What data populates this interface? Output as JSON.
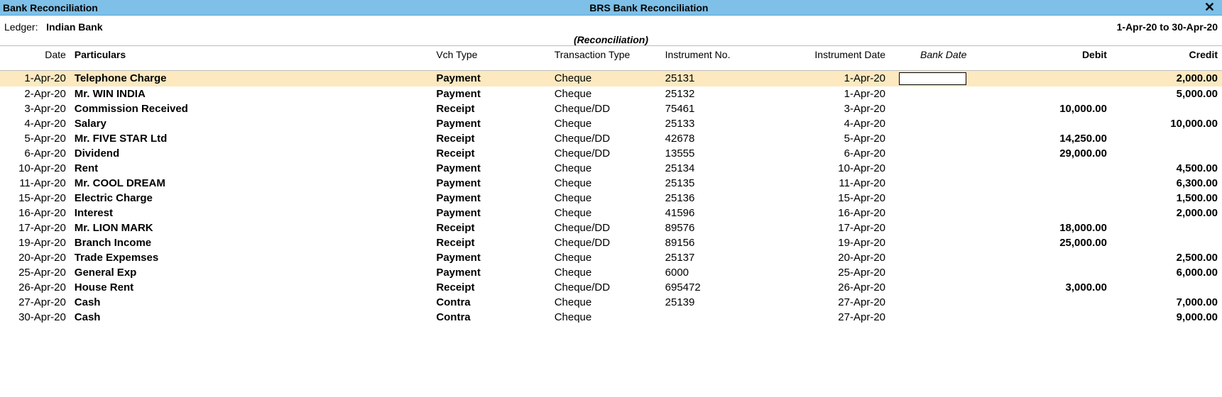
{
  "titlebar": {
    "left": "Bank Reconciliation",
    "center": "BRS Bank  Reconciliation",
    "close_glyph": "✕"
  },
  "header": {
    "ledger_label": "Ledger:",
    "ledger_name": "Indian Bank",
    "period": "1-Apr-20 to 30-Apr-20",
    "reconciliation_label": "(Reconciliation)"
  },
  "columns": {
    "date": "Date",
    "particulars": "Particulars",
    "vch_type": "Vch Type",
    "txn_type": "Transaction Type",
    "inst_no": "Instrument No.",
    "inst_date": "Instrument Date",
    "bank_date": "Bank Date",
    "debit": "Debit",
    "credit": "Credit"
  },
  "rows": [
    {
      "date": "1-Apr-20",
      "particulars": "Telephone Charge",
      "vch_type": "Payment",
      "txn_type": "Cheque",
      "inst_no": "25131",
      "inst_date": "1-Apr-20",
      "bank_date": "",
      "debit": "",
      "credit": "2,000.00",
      "highlight": true,
      "editable_bankdate": true
    },
    {
      "date": "2-Apr-20",
      "particulars": "Mr. WIN INDIA",
      "vch_type": "Payment",
      "txn_type": "Cheque",
      "inst_no": "25132",
      "inst_date": "1-Apr-20",
      "bank_date": "",
      "debit": "",
      "credit": "5,000.00"
    },
    {
      "date": "3-Apr-20",
      "particulars": "Commission Received",
      "vch_type": "Receipt",
      "txn_type": "Cheque/DD",
      "inst_no": "75461",
      "inst_date": "3-Apr-20",
      "bank_date": "",
      "debit": "10,000.00",
      "credit": ""
    },
    {
      "date": "4-Apr-20",
      "particulars": "Salary",
      "vch_type": "Payment",
      "txn_type": "Cheque",
      "inst_no": "25133",
      "inst_date": "4-Apr-20",
      "bank_date": "",
      "debit": "",
      "credit": "10,000.00"
    },
    {
      "date": "5-Apr-20",
      "particulars": "Mr. FIVE STAR Ltd",
      "vch_type": "Receipt",
      "txn_type": "Cheque/DD",
      "inst_no": "42678",
      "inst_date": "5-Apr-20",
      "bank_date": "",
      "debit": "14,250.00",
      "credit": ""
    },
    {
      "date": "6-Apr-20",
      "particulars": "Dividend",
      "vch_type": "Receipt",
      "txn_type": "Cheque/DD",
      "inst_no": "13555",
      "inst_date": "6-Apr-20",
      "bank_date": "",
      "debit": "29,000.00",
      "credit": ""
    },
    {
      "date": "10-Apr-20",
      "particulars": "Rent",
      "vch_type": "Payment",
      "txn_type": "Cheque",
      "inst_no": "25134",
      "inst_date": "10-Apr-20",
      "bank_date": "",
      "debit": "",
      "credit": "4,500.00"
    },
    {
      "date": "11-Apr-20",
      "particulars": "Mr. COOL DREAM",
      "vch_type": "Payment",
      "txn_type": "Cheque",
      "inst_no": "25135",
      "inst_date": "11-Apr-20",
      "bank_date": "",
      "debit": "",
      "credit": "6,300.00"
    },
    {
      "date": "15-Apr-20",
      "particulars": "Electric Charge",
      "vch_type": "Payment",
      "txn_type": "Cheque",
      "inst_no": "25136",
      "inst_date": "15-Apr-20",
      "bank_date": "",
      "debit": "",
      "credit": "1,500.00"
    },
    {
      "date": "16-Apr-20",
      "particulars": "Interest",
      "vch_type": "Payment",
      "txn_type": "Cheque",
      "inst_no": "41596",
      "inst_date": "16-Apr-20",
      "bank_date": "",
      "debit": "",
      "credit": "2,000.00"
    },
    {
      "date": "17-Apr-20",
      "particulars": "Mr. LION MARK",
      "vch_type": "Receipt",
      "txn_type": "Cheque/DD",
      "inst_no": "89576",
      "inst_date": "17-Apr-20",
      "bank_date": "",
      "debit": "18,000.00",
      "credit": ""
    },
    {
      "date": "19-Apr-20",
      "particulars": "Branch Income",
      "vch_type": "Receipt",
      "txn_type": "Cheque/DD",
      "inst_no": "89156",
      "inst_date": "19-Apr-20",
      "bank_date": "",
      "debit": "25,000.00",
      "credit": ""
    },
    {
      "date": "20-Apr-20",
      "particulars": "Trade Expemses",
      "vch_type": "Payment",
      "txn_type": "Cheque",
      "inst_no": "25137",
      "inst_date": "20-Apr-20",
      "bank_date": "",
      "debit": "",
      "credit": "2,500.00"
    },
    {
      "date": "25-Apr-20",
      "particulars": "General Exp",
      "vch_type": "Payment",
      "txn_type": "Cheque",
      "inst_no": "6000",
      "inst_date": "25-Apr-20",
      "bank_date": "",
      "debit": "",
      "credit": "6,000.00"
    },
    {
      "date": "26-Apr-20",
      "particulars": "House Rent",
      "vch_type": "Receipt",
      "txn_type": "Cheque/DD",
      "inst_no": "695472",
      "inst_date": "26-Apr-20",
      "bank_date": "",
      "debit": "3,000.00",
      "credit": ""
    },
    {
      "date": "27-Apr-20",
      "particulars": "Cash",
      "vch_type": "Contra",
      "txn_type": "Cheque",
      "inst_no": "25139",
      "inst_date": "27-Apr-20",
      "bank_date": "",
      "debit": "",
      "credit": "7,000.00"
    },
    {
      "date": "30-Apr-20",
      "particulars": "Cash",
      "vch_type": "Contra",
      "txn_type": "Cheque",
      "inst_no": "",
      "inst_date": "27-Apr-20",
      "bank_date": "",
      "debit": "",
      "credit": "9,000.00"
    }
  ],
  "style": {
    "titlebar_bg": "#7ec0e8",
    "highlight_bg": "#fce9c0",
    "border_color": "#bcbcbc"
  }
}
